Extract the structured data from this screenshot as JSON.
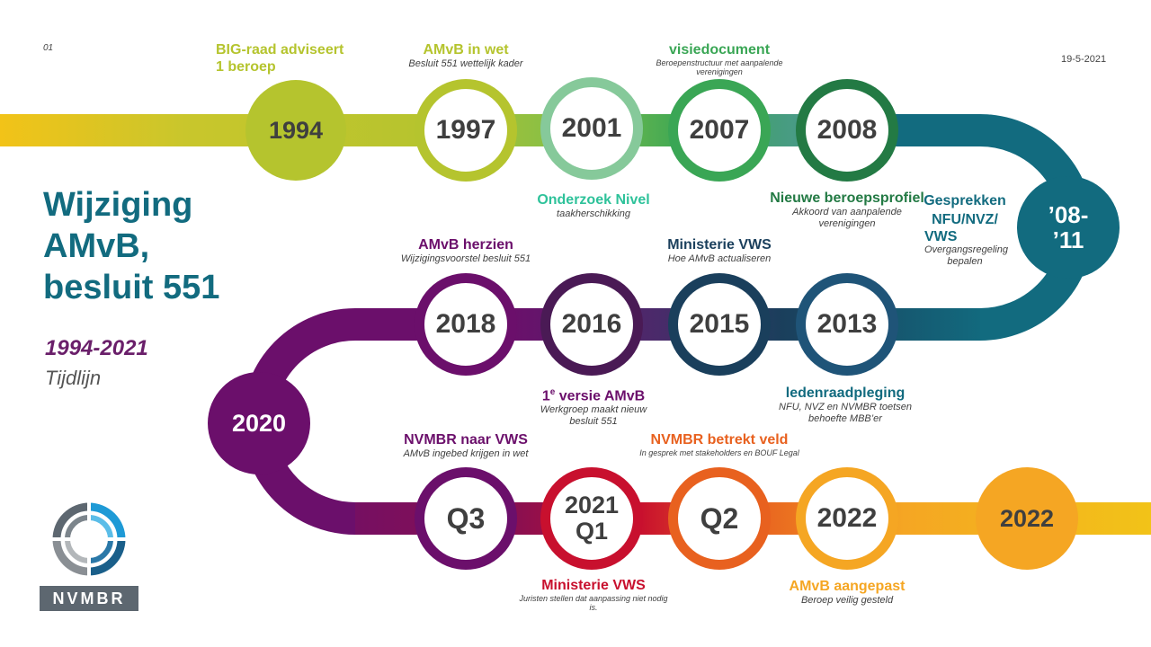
{
  "slide_number": "01",
  "date": "19-5-2021",
  "title": "Wijziging AMvB, besluit 551",
  "title_lines": [
    "Wijziging",
    "AMvB,",
    "besluit 551"
  ],
  "period": "1994-2021",
  "subtitle": "Tijdlijn",
  "logo": {
    "text": "NVMBR",
    "icon": "nvmbr-logo-icon"
  },
  "colors": {
    "yellow_green": "#b5c42e",
    "green": "#3aa655",
    "light_green": "#86c99a",
    "dark_green": "#237a44",
    "petrol": "#126b7f",
    "navy": "#1a3f5c",
    "purple": "#6b0f6b",
    "red": "#c8102e",
    "orange": "#e8611f",
    "amber": "#f5a623"
  },
  "milestones": {
    "m1994": {
      "year": "1994",
      "title_lines": [
        "BIG-raad adviseert",
        "1 beroep"
      ],
      "sub": ""
    },
    "m1997": {
      "year": "1997",
      "title": "AMvB in wet",
      "sub": "Besluit  551 wettelijk  kader"
    },
    "m2001": {
      "year": "2001",
      "title": "Onderzoek Nivel",
      "sub": "taakherschikking"
    },
    "m2007": {
      "year": "2007",
      "title": "visiedocument",
      "sub": "Beroepenstructuur met aanpalende verenigingen"
    },
    "m2008": {
      "year": "2008",
      "title": "Nieuwe beroepsprofiel",
      "sub": "Akkoord  van aanpalende verenigingen"
    },
    "m0811": {
      "year_lines": [
        "’08-",
        "’11"
      ],
      "title_lines": [
        "Gesprekken",
        "NFU/NVZ/",
        "VWS"
      ],
      "sub": "Overgangsregeling bepalen"
    },
    "m2013": {
      "year": "2013",
      "title": "ledenraadpleging",
      "sub": "NFU, NVZ en NVMBR toetsen behoefte  MBB’er"
    },
    "m2015": {
      "year": "2015",
      "title": "Ministerie VWS",
      "sub": "Hoe AMvB actualiseren"
    },
    "m2016": {
      "year": "2016",
      "title_num": "1",
      "title_sup": "e",
      "title_rest": " versie AMvB",
      "sub": "Werkgroep maakt nieuw besluit  551"
    },
    "m2018": {
      "year": "2018",
      "title": "AMvB herzien",
      "sub": "Wijzigingsvoorstel  besluit  551"
    },
    "m2020": {
      "year": "2020"
    },
    "mQ3": {
      "year": "Q3",
      "title": "NVMBR naar VWS",
      "sub": "AMvB ingebed krijgen  in wet"
    },
    "m2021": {
      "year_lines": [
        "2021",
        "Q1"
      ],
      "title": "Ministerie VWS",
      "sub": "Juristen stellen dat aanpassing niet nodig is."
    },
    "mQ2": {
      "year": "Q2",
      "title": "NVMBR betrekt veld",
      "sub": "In gesprek met stakeholders en BOUF Legal"
    },
    "m2022a": {
      "year": "2022",
      "title": "AMvB aangepast",
      "sub": "Beroep veilig  gesteld"
    },
    "m2022b": {
      "year": "2022"
    }
  }
}
